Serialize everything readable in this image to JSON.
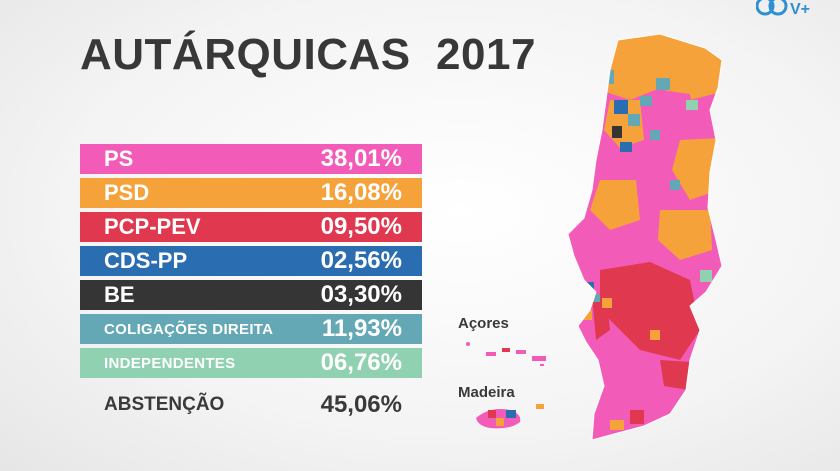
{
  "title": "AUTÁRQUICAS  2017",
  "logo_text": "V+",
  "results": [
    {
      "party": "PS",
      "value": "38,01%",
      "color": "#f25cb8"
    },
    {
      "party": "PSD",
      "value": "16,08%",
      "color": "#f6a23a"
    },
    {
      "party": "PCP-PEV",
      "value": "09,50%",
      "color": "#e0394f"
    },
    {
      "party": "CDS-PP",
      "value": "02,56%",
      "color": "#2a6db0"
    },
    {
      "party": "BE",
      "value": "03,30%",
      "color": "#353535"
    },
    {
      "party": "COLIGAÇÕES DIREITA",
      "value": "11,93%",
      "color": "#63a8b4"
    },
    {
      "party": "INDEPENDENTES",
      "value": "06,76%",
      "color": "#8fd1b0"
    }
  ],
  "abstention": {
    "label": "ABSTENÇÃO",
    "value": "45,06%"
  },
  "map_labels": {
    "azores": "Açores",
    "madeira": "Madeira"
  }
}
